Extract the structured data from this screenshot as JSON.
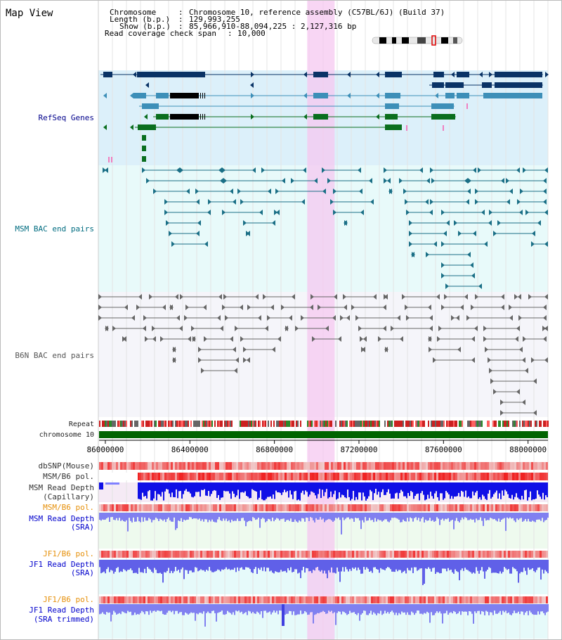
{
  "header": {
    "title": "Map View",
    "info": [
      {
        "key": "Chromosome",
        "sep": ":",
        "value": "Chromosome 10, reference assembly (C57BL/6J) (Build 37)"
      },
      {
        "key": "Length (b.p.)",
        "sep": ":",
        "value": "129,993,255"
      },
      {
        "key": "Show (b.p.)",
        "sep": ":",
        "value": "85,966,910-88,094,225 : 2,127,316 bp"
      },
      {
        "key": "Read coverage check span",
        "sep": ":",
        "value": "10,000"
      }
    ]
  },
  "region": {
    "start": 85966910,
    "end": 88094225,
    "highlight_start": 86955000,
    "highlight_end": 87085000
  },
  "axis": {
    "ticks": [
      "86000000",
      "86400000",
      "86800000",
      "87200000",
      "87600000",
      "88000000"
    ]
  },
  "tracks": {
    "refseq": {
      "label": "RefSeq Genes",
      "color": "#00008b"
    },
    "msm_bac": {
      "label": "MSM BAC end pairs",
      "color": "#006c80"
    },
    "b6n_bac": {
      "label": "B6N BAC end pairs",
      "color": "#555555"
    },
    "repeat": {
      "label": "Repeat"
    },
    "chromosome": {
      "label": "chromosome 10",
      "color": "#006400"
    },
    "dbsnp": {
      "label": "dbSNP(Mouse)"
    },
    "msm_b6_pol_cap": {
      "label": "MSM/B6 pol."
    },
    "msm_depth_cap": {
      "label1": "MSM Read Depth",
      "label2": "(Capillary)"
    },
    "msm_b6_pol_sra": {
      "label": "MSM/B6 pol.",
      "color": "#e6900a"
    },
    "msm_depth_sra": {
      "label1": "MSM Read Depth",
      "label2": "(SRA)",
      "color": "#0000cc"
    },
    "jf1_b6_pol": {
      "label": "JF1/B6 pol.",
      "color": "#e6900a"
    },
    "jf1_depth_sra": {
      "label1": "JF1 Read Depth",
      "label2": "(SRA)",
      "color": "#0000cc"
    },
    "jf1_b6_pol_2": {
      "label": "JF1/B6 pol.",
      "color": "#e6900a"
    },
    "jf1_depth_trim": {
      "label1": "JF1 Read Depth",
      "label2": "(SRA trimmed)",
      "color": "#0000cc"
    }
  },
  "colors": {
    "gene_dark": "#0a3366",
    "gene_mid": "#3d8fb8",
    "gene_green": "#0a6e1e",
    "refseq_bg": "#dcf0fa",
    "msm_bg": "#e8fafa",
    "b6n_bg": "#f5f5fa",
    "highlight": "#f5c8f0"
  }
}
